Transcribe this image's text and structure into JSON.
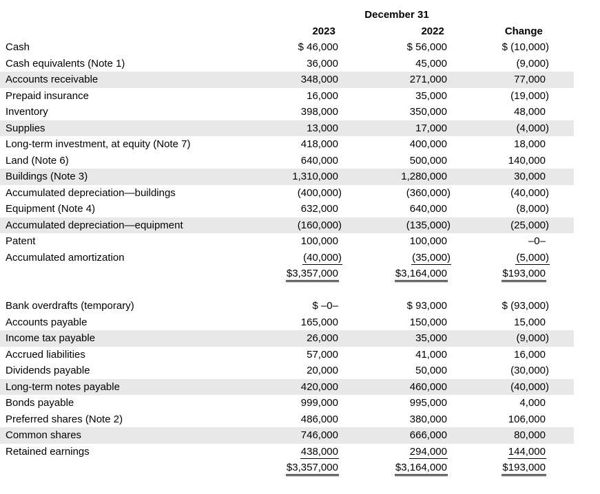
{
  "table": {
    "header": {
      "date_label": "December 31",
      "col_2023": "2023",
      "col_2022": "2022",
      "col_change": "Change"
    },
    "colors": {
      "row_shading": "#e8e8e8",
      "text": "#000000"
    },
    "sections": [
      {
        "name": "assets",
        "rows": [
          {
            "label": "Cash",
            "v2023": "$ 46,000",
            "v2022": "$ 56,000",
            "change": "$ (10,000)",
            "shaded": false
          },
          {
            "label": "Cash equivalents (Note 1)",
            "v2023": "36,000",
            "v2022": "45,000",
            "change": "(9,000)",
            "shaded": false
          },
          {
            "label": "Accounts receivable",
            "v2023": "348,000",
            "v2022": "271,000",
            "change": "77,000",
            "shaded": true
          },
          {
            "label": "Prepaid insurance",
            "v2023": "16,000",
            "v2022": "35,000",
            "change": "(19,000)",
            "shaded": false
          },
          {
            "label": "Inventory",
            "v2023": "398,000",
            "v2022": "350,000",
            "change": "48,000",
            "shaded": false
          },
          {
            "label": "Supplies",
            "v2023": "13,000",
            "v2022": "17,000",
            "change": "(4,000)",
            "shaded": true
          },
          {
            "label": "Long-term investment, at equity (Note 7)",
            "v2023": "418,000",
            "v2022": "400,000",
            "change": "18,000",
            "shaded": false
          },
          {
            "label": "Land (Note 6)",
            "v2023": "640,000",
            "v2022": "500,000",
            "change": "140,000",
            "shaded": false
          },
          {
            "label": "Buildings (Note 3)",
            "v2023": "1,310,000",
            "v2022": "1,280,000",
            "change": "30,000",
            "shaded": true
          },
          {
            "label": "Accumulated depreciation—buildings",
            "v2023": "(400,000)",
            "v2022": "(360,000)",
            "change": "(40,000)",
            "shaded": false
          },
          {
            "label": "Equipment (Note 4)",
            "v2023": "632,000",
            "v2022": "640,000",
            "change": "(8,000)",
            "shaded": false
          },
          {
            "label": "Accumulated depreciation—equipment",
            "v2023": "(160,000)",
            "v2022": "(135,000)",
            "change": "(25,000)",
            "shaded": true
          },
          {
            "label": "Patent",
            "v2023": "100,000",
            "v2022": "100,000",
            "change": "–0–",
            "shaded": false
          },
          {
            "label": "Accumulated amortization",
            "v2023": "(40,000)",
            "v2022": "(35,000)",
            "change": "(5,000)",
            "shaded": false,
            "underline": "single"
          },
          {
            "label": "",
            "v2023": "$3,357,000",
            "v2022": "$3,164,000",
            "change": "$193,000",
            "shaded": false,
            "underline": "double",
            "is_total": true
          }
        ]
      },
      {
        "name": "liabilities-and-equity",
        "rows": [
          {
            "label": "Bank overdrafts (temporary)",
            "v2023": "$ –0–",
            "v2022": "$ 93,000",
            "change": "$ (93,000)",
            "shaded": false
          },
          {
            "label": "Accounts payable",
            "v2023": "165,000",
            "v2022": "150,000",
            "change": "15,000",
            "shaded": false
          },
          {
            "label": "Income tax payable",
            "v2023": "26,000",
            "v2022": "35,000",
            "change": "(9,000)",
            "shaded": true
          },
          {
            "label": "Accrued liabilities",
            "v2023": "57,000",
            "v2022": "41,000",
            "change": "16,000",
            "shaded": false
          },
          {
            "label": "Dividends payable",
            "v2023": "20,000",
            "v2022": "50,000",
            "change": "(30,000)",
            "shaded": false
          },
          {
            "label": "Long-term notes payable",
            "v2023": "420,000",
            "v2022": "460,000",
            "change": "(40,000)",
            "shaded": true
          },
          {
            "label": "Bonds payable",
            "v2023": "999,000",
            "v2022": "995,000",
            "change": "4,000",
            "shaded": false
          },
          {
            "label": "Preferred shares (Note 2)",
            "v2023": "486,000",
            "v2022": "380,000",
            "change": "106,000",
            "shaded": false
          },
          {
            "label": "Common shares",
            "v2023": "746,000",
            "v2022": "666,000",
            "change": "80,000",
            "shaded": true
          },
          {
            "label": "Retained earnings",
            "v2023": "438,000",
            "v2022": "294,000",
            "change": "144,000",
            "shaded": false,
            "underline": "single"
          },
          {
            "label": "",
            "v2023": "$3,357,000",
            "v2022": "$3,164,000",
            "change": "$193,000",
            "shaded": false,
            "underline": "double",
            "is_total": true
          }
        ]
      }
    ]
  }
}
